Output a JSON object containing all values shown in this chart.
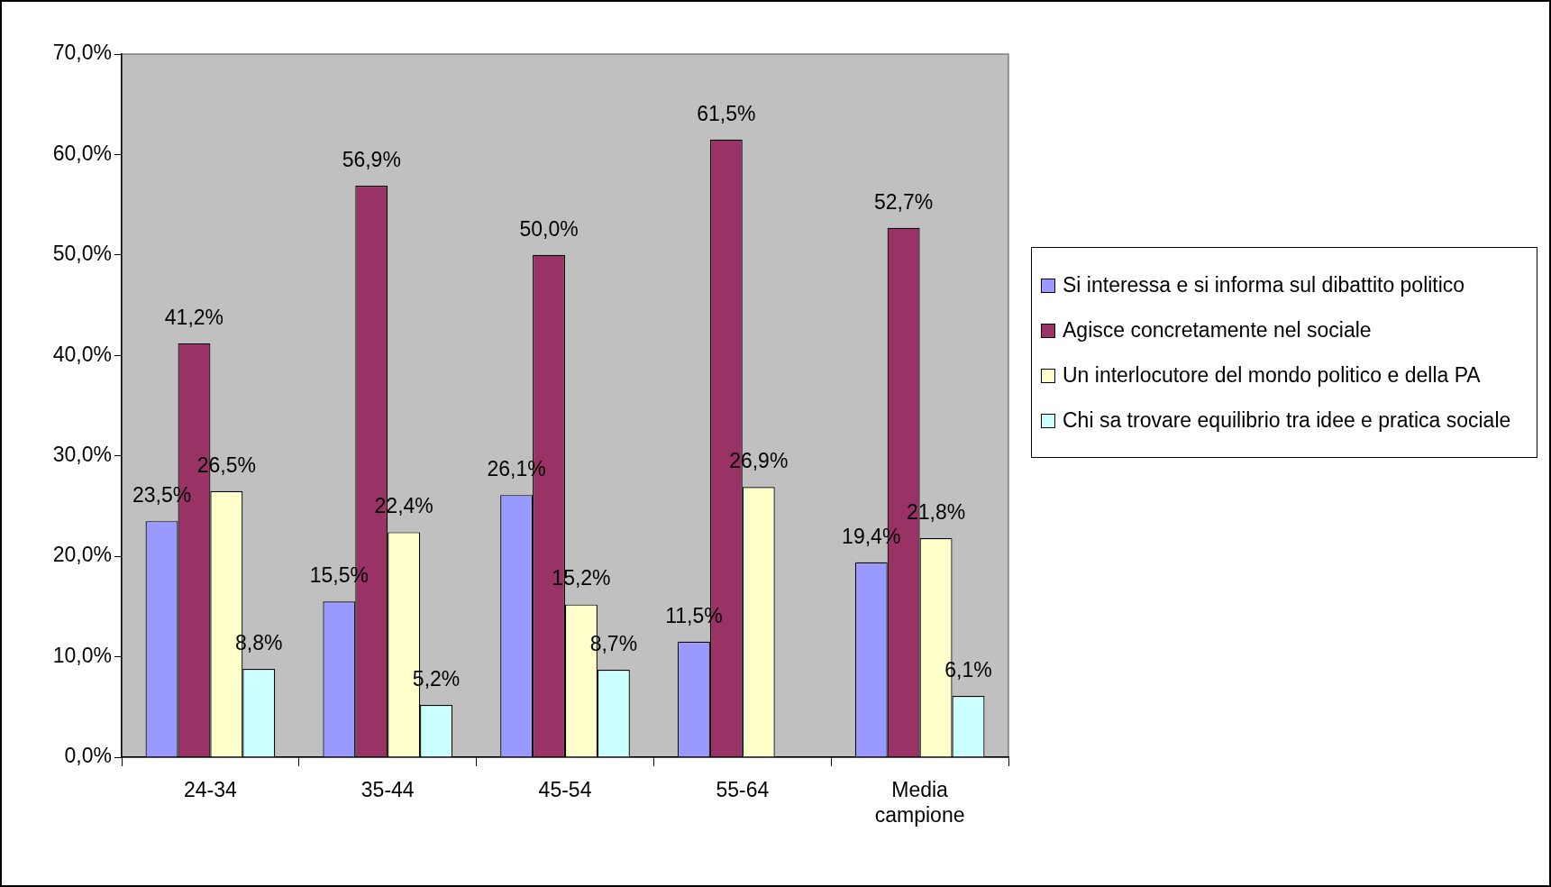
{
  "chart_data": {
    "type": "bar",
    "categories": [
      "24-34",
      "35-44",
      "45-54",
      "55-64",
      "Media campione"
    ],
    "series": [
      {
        "name": "Si interessa e si informa sul dibattito politico",
        "color": "#9999ff",
        "values": [
          23.5,
          15.5,
          26.1,
          11.5,
          19.4
        ],
        "value_labels": [
          "23,5%",
          "15,5%",
          "26,1%",
          "11,5%",
          "19,4%"
        ]
      },
      {
        "name": "Agisce concretamente nel sociale",
        "color": "#993366",
        "values": [
          41.2,
          56.9,
          50.0,
          61.5,
          52.7
        ],
        "value_labels": [
          "41,2%",
          "56,9%",
          "50,0%",
          "61,5%",
          "52,7%"
        ]
      },
      {
        "name": "Un interlocutore del mondo politico e della PA",
        "color": "#ffffcc",
        "values": [
          26.5,
          22.4,
          15.2,
          26.9,
          21.8
        ],
        "value_labels": [
          "26,5%",
          "22,4%",
          "15,2%",
          "26,9%",
          "21,8%"
        ]
      },
      {
        "name": "Chi sa trovare equilibrio tra idee e pratica sociale",
        "color": "#ccffff",
        "values": [
          8.8,
          5.2,
          8.7,
          null,
          6.1
        ],
        "value_labels": [
          "8,8%",
          "5,2%",
          "8,7%",
          null,
          "6,1%"
        ]
      }
    ],
    "ylim": [
      0,
      70
    ],
    "yticks": [
      {
        "value": 0,
        "label": "0,0%"
      },
      {
        "value": 10,
        "label": "10,0%"
      },
      {
        "value": 20,
        "label": "20,0%"
      },
      {
        "value": 30,
        "label": "30,0%"
      },
      {
        "value": 40,
        "label": "40,0%"
      },
      {
        "value": 50,
        "label": "50,0%"
      },
      {
        "value": 60,
        "label": "60,0%"
      },
      {
        "value": 70,
        "label": "70,0%"
      }
    ],
    "grid": false,
    "legend": "right"
  }
}
